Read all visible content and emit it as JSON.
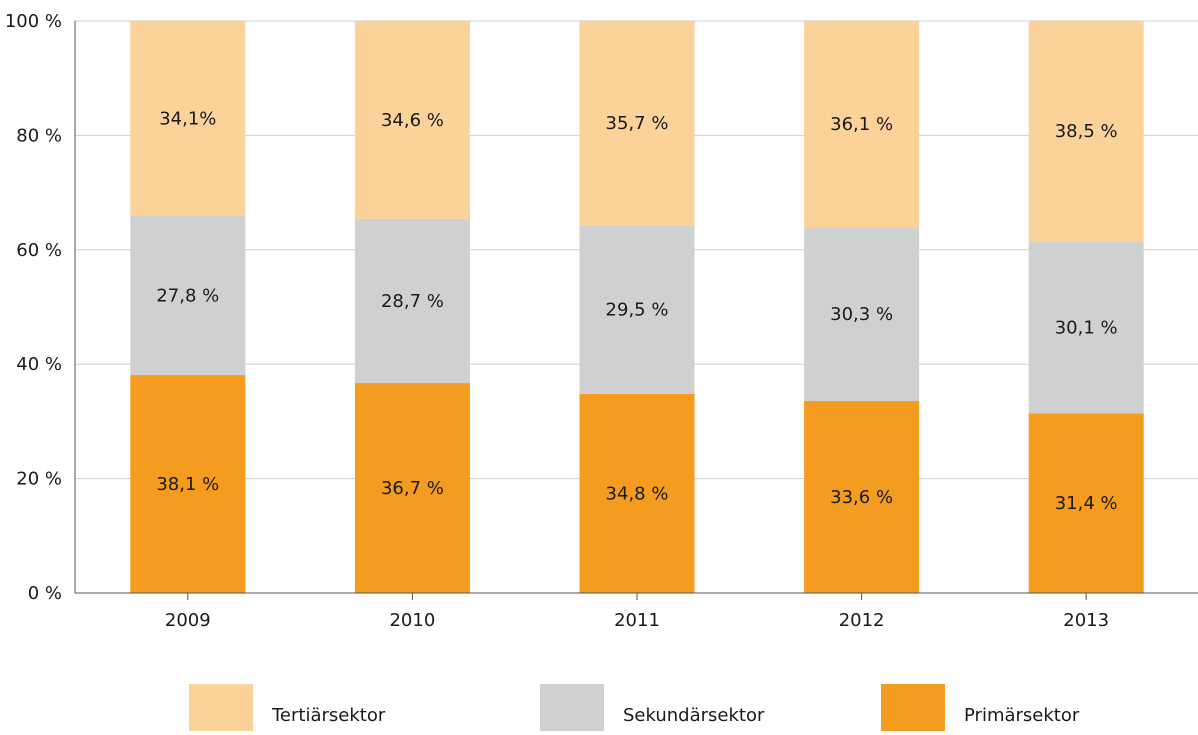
{
  "chart_data": {
    "type": "bar",
    "stacked": true,
    "categories": [
      "2009",
      "2010",
      "2011",
      "2012",
      "2013"
    ],
    "series": [
      {
        "name": "Primärsektor",
        "values": [
          38.1,
          36.7,
          34.8,
          33.6,
          31.4
        ],
        "labels": [
          "38,1 %",
          "36,7 %",
          "34,8 %",
          "33,6 %",
          "31,4 %"
        ],
        "color": "#f39c1f"
      },
      {
        "name": "Sekundärsektor",
        "values": [
          27.8,
          28.7,
          29.5,
          30.3,
          30.1
        ],
        "labels": [
          "27,8 %",
          "28,7 %",
          "29,5 %",
          "30,3 %",
          "30,1 %"
        ],
        "color": "#cfd0d2"
      },
      {
        "name": "Tertiärsektor",
        "values": [
          34.1,
          34.6,
          35.7,
          36.1,
          38.5
        ],
        "labels": [
          "34,1%",
          "34,6 %",
          "35,7 %",
          "36,1 %",
          "38,5 %"
        ],
        "color": "#fcd29b"
      }
    ],
    "ylim": [
      0,
      100
    ],
    "yticks": [
      0,
      20,
      40,
      60,
      80,
      100
    ],
    "ytick_labels": [
      "0 %",
      "20 %",
      "40 %",
      "60 %",
      "80 %",
      "100 %"
    ],
    "grid": true,
    "legend": {
      "placement": "bottom",
      "items": [
        {
          "name": "Tertiärsektor",
          "color": "#fcd29b"
        },
        {
          "name": "Sekundärsektor",
          "color": "#cfd0d2"
        },
        {
          "name": "Primärsektor",
          "color": "#f39c1f"
        }
      ]
    }
  }
}
